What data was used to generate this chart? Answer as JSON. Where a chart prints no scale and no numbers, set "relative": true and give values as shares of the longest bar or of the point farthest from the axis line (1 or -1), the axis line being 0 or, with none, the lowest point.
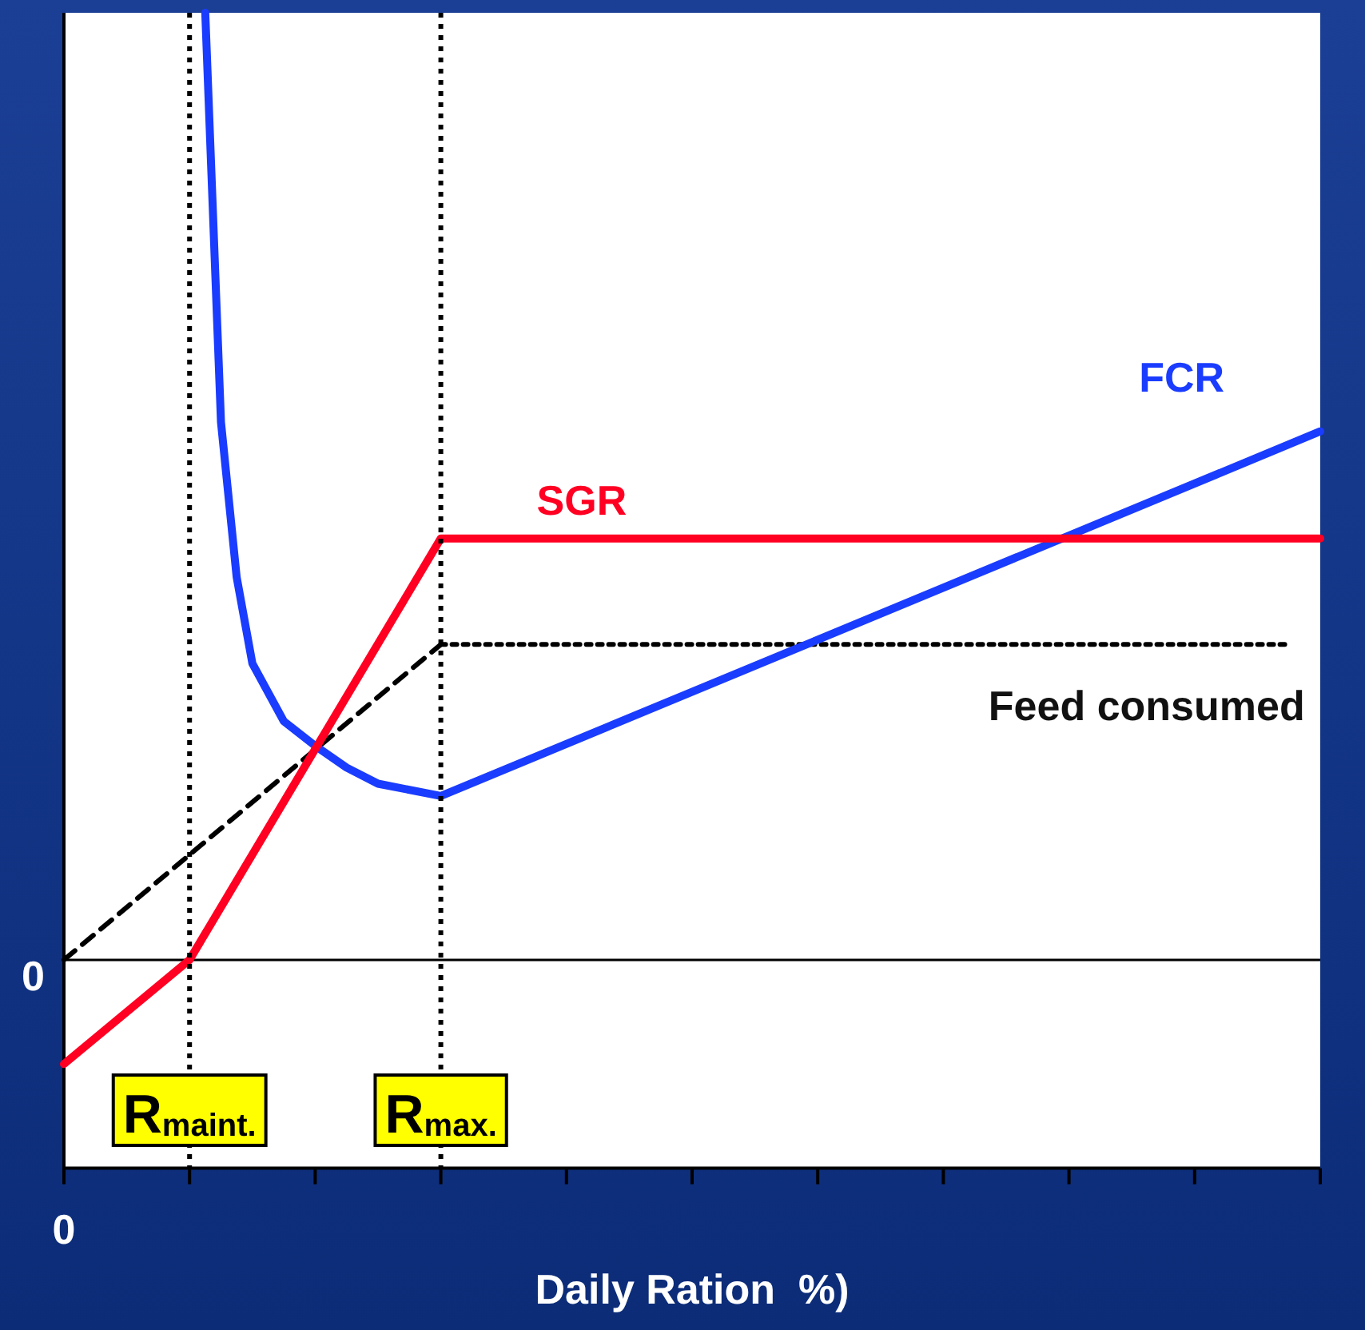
{
  "chart_data": {
    "type": "line",
    "relative": true,
    "xlabel": "Daily Ration  %)",
    "annotations": [
      "0",
      "0"
    ],
    "categories": [
      null,
      null,
      null,
      null,
      null,
      null,
      null,
      null,
      "R$_{maint.}$",
      null,
      null,
      null,
      null,
      null,
      null,
      null,
      null,
      null,
      null,
      null,
      null,
      null,
      null,
      null,
      "R$_{max.}$",
      null,
      null,
      null,
      null,
      null,
      null,
      null,
      null,
      null,
      null,
      null,
      null,
      null,
      null,
      null,
      null,
      null,
      null,
      null,
      null,
      null,
      null,
      null,
      null,
      null,
      null,
      null,
      null,
      null,
      null,
      null,
      null,
      null,
      null,
      null,
      null,
      null,
      null,
      null,
      null,
      null,
      null,
      null,
      null,
      null,
      null,
      null,
      null,
      null,
      null,
      null,
      null,
      null,
      null,
      null,
      null
    ],
    "series": [
      {
        "name": "SGR",
        "color": "#ff0022",
        "line_style": "solid",
        "values": [
          -0.11,
          null,
          null,
          null,
          null,
          null,
          null,
          null,
          0,
          null,
          null,
          null,
          null,
          null,
          null,
          null,
          null,
          null,
          null,
          null,
          null,
          null,
          null,
          null,
          0.445,
          null,
          null,
          null,
          null,
          null,
          null,
          null,
          null,
          null,
          null,
          null,
          null,
          null,
          null,
          null,
          null,
          null,
          null,
          null,
          null,
          null,
          null,
          null,
          null,
          null,
          null,
          null,
          null,
          null,
          null,
          null,
          null,
          null,
          null,
          null,
          null,
          null,
          null,
          null,
          null,
          null,
          null,
          null,
          null,
          null,
          null,
          null,
          null,
          null,
          null,
          null,
          null,
          null,
          null,
          null,
          0.445
        ]
      },
      {
        "name": "FCR",
        "color": "#1a3cff",
        "line_style": "solid",
        "values": [
          null,
          null,
          null,
          null,
          null,
          null,
          null,
          null,
          null,
          1,
          0.568,
          0.404,
          0.313,
          null,
          0.252,
          null,
          0.226,
          null,
          0.203,
          null,
          0.186,
          null,
          null,
          null,
          0.173,
          null,
          null,
          null,
          null,
          null,
          null,
          null,
          null,
          null,
          null,
          null,
          null,
          null,
          null,
          null,
          null,
          null,
          null,
          null,
          null,
          null,
          null,
          null,
          null,
          null,
          null,
          null,
          null,
          null,
          null,
          null,
          null,
          null,
          null,
          null,
          null,
          null,
          null,
          null,
          null,
          null,
          null,
          null,
          null,
          null,
          null,
          null,
          null,
          null,
          null,
          null,
          null,
          null,
          null,
          null,
          0.558
        ]
      },
      {
        "color": "#000000",
        "line_style": "dashed",
        "values": [
          0,
          null,
          null,
          null,
          null,
          null,
          null,
          null,
          null,
          null,
          null,
          null,
          null,
          null,
          null,
          null,
          null,
          null,
          null,
          null,
          null,
          null,
          null,
          null,
          0.333,
          null,
          null,
          null,
          null,
          null,
          null,
          null,
          null,
          null,
          null,
          null,
          null,
          null,
          null,
          null,
          null,
          null,
          null,
          null,
          null,
          null,
          null,
          null,
          null,
          null,
          null,
          null,
          null,
          null,
          null,
          null,
          null,
          null,
          null,
          null,
          null,
          null,
          null,
          null,
          null,
          null,
          null,
          null,
          null,
          null,
          null,
          null,
          null,
          null,
          null,
          null,
          null,
          null,
          null,
          null,
          null
        ]
      },
      {
        "name": "Feed consumed",
        "color": "#000000",
        "line_style": "dotted",
        "values": [
          null,
          null,
          null,
          null,
          null,
          null,
          null,
          null,
          null,
          null,
          null,
          null,
          null,
          null,
          null,
          null,
          null,
          null,
          null,
          null,
          null,
          null,
          null,
          null,
          0.333,
          null,
          null,
          null,
          null,
          null,
          null,
          null,
          null,
          null,
          null,
          null,
          null,
          null,
          null,
          null,
          null,
          null,
          null,
          null,
          null,
          null,
          null,
          null,
          null,
          null,
          null,
          null,
          null,
          null,
          null,
          null,
          null,
          null,
          null,
          null,
          null,
          null,
          null,
          null,
          null,
          null,
          null,
          null,
          null,
          null,
          null,
          null,
          null,
          null,
          null,
          null,
          null,
          null,
          0.333,
          null,
          null
        ]
      }
    ],
    "ref_lines": [
      {
        "axis": "x",
        "value": "R$_{maint.}$",
        "color": "#000000",
        "line_style": "dotted"
      },
      {
        "axis": "x",
        "value": "R$_{max.}$",
        "color": "#000000",
        "line_style": "dotted"
      }
    ],
    "legend": false,
    "grid": false,
    "marker": "none"
  }
}
